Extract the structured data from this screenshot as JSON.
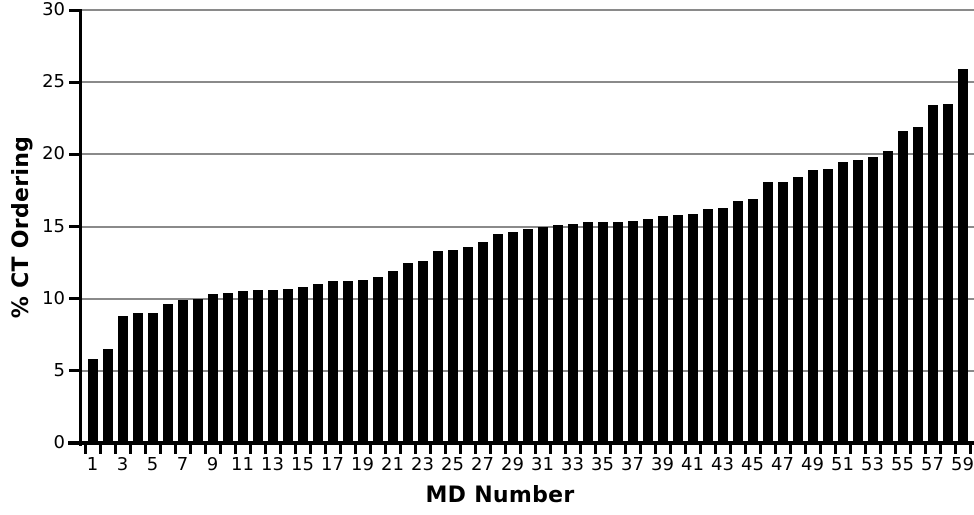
{
  "chart_data": {
    "type": "bar",
    "title": "",
    "xlabel": "MD Number",
    "ylabel": "% CT Ordering",
    "x": [
      1,
      2,
      3,
      4,
      5,
      6,
      7,
      8,
      9,
      10,
      11,
      12,
      13,
      14,
      15,
      16,
      17,
      18,
      19,
      20,
      21,
      22,
      23,
      24,
      25,
      26,
      27,
      28,
      29,
      30,
      31,
      32,
      33,
      34,
      35,
      36,
      37,
      38,
      39,
      40,
      41,
      42,
      43,
      44,
      45,
      46,
      47,
      48,
      49,
      50,
      51,
      52,
      53,
      54,
      55,
      56,
      57,
      58,
      59
    ],
    "values": [
      5.8,
      6.5,
      8.8,
      9.0,
      9.0,
      9.6,
      9.9,
      10.0,
      10.3,
      10.4,
      10.5,
      10.6,
      10.6,
      10.7,
      10.8,
      11.0,
      11.2,
      11.2,
      11.3,
      11.5,
      11.9,
      12.5,
      12.6,
      13.3,
      13.4,
      13.6,
      13.9,
      14.5,
      14.6,
      14.8,
      15.0,
      15.1,
      15.2,
      15.3,
      15.3,
      15.3,
      15.4,
      15.5,
      15.7,
      15.8,
      15.9,
      16.2,
      16.3,
      16.8,
      16.9,
      18.1,
      18.1,
      18.4,
      18.9,
      19.0,
      19.5,
      19.6,
      19.8,
      20.2,
      21.6,
      21.9,
      23.4,
      23.5,
      25.9
    ],
    "ylim": [
      0,
      30
    ],
    "yticks": [
      0,
      5,
      10,
      15,
      20,
      25,
      30
    ],
    "xtick_labels": [
      "1",
      "3",
      "5",
      "7",
      "9",
      "11",
      "13",
      "15",
      "17",
      "19",
      "21",
      "23",
      "25",
      "27",
      "29",
      "31",
      "33",
      "35",
      "37",
      "39",
      "41",
      "43",
      "45",
      "47",
      "49",
      "51",
      "53",
      "55",
      "57",
      "59"
    ],
    "grid": "horizontal-on",
    "legend": "none",
    "bar_color": "#000000",
    "gridline_color": "#8a8a8a",
    "axis_color": "#000000",
    "background_color": "#ffffff"
  }
}
